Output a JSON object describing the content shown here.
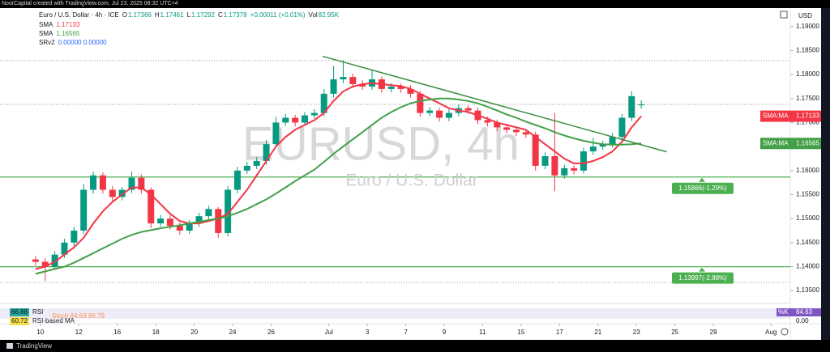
{
  "frame": {
    "credit": "NoorCapital created with TradingView.com, Jul 23, 2025 08:32 UTC+4",
    "logo": "TradingView",
    "currency": "USD"
  },
  "chart_data": {
    "type": "candlestick",
    "watermark": "EURUSD, 4h",
    "watermark_sub": "Euro / U.S. Dollar",
    "symbol": "Euro / U.S. Dollar · 4h · ICE",
    "ohlc_labels": [
      "O",
      "H",
      "L",
      "C"
    ],
    "ohlc_values": [
      "1.17366",
      "1.17461",
      "1.17292",
      "1.17378"
    ],
    "change": "+0.00011 (+0.01%)",
    "vol_label": "Vol",
    "vol": "82.95K",
    "indicators": [
      {
        "name": "SMA",
        "value": "1.17133",
        "color": "#f23645"
      },
      {
        "name": "SMA",
        "value": "1.16565",
        "color": "#43a047"
      },
      {
        "name": "SRv2",
        "value": "0.00000  0.00000",
        "color": "#2962ff"
      }
    ],
    "up_color": "#089981",
    "down_color": "#f23645",
    "xlim": [
      -2.1,
      39.0
    ],
    "ylim": [
      1.193,
      1.133
    ],
    "grid": false,
    "xticks": [
      {
        "value": 0,
        "label": "10"
      },
      {
        "value": 2,
        "label": "12"
      },
      {
        "value": 4,
        "label": "16"
      },
      {
        "value": 6,
        "label": "18"
      },
      {
        "value": 8,
        "label": "20"
      },
      {
        "value": 10,
        "label": "24"
      },
      {
        "value": 12,
        "label": "26"
      },
      {
        "value": 15,
        "label": "Jul"
      },
      {
        "value": 17,
        "label": "3"
      },
      {
        "value": 19,
        "label": "7"
      },
      {
        "value": 21,
        "label": "9"
      },
      {
        "value": 23,
        "label": "11"
      },
      {
        "value": 25,
        "label": "15"
      },
      {
        "value": 27,
        "label": "17"
      },
      {
        "value": 29,
        "label": "21"
      },
      {
        "value": 31,
        "label": "23"
      },
      {
        "value": 33,
        "label": "25"
      },
      {
        "value": 35,
        "label": "29"
      },
      {
        "value": 38,
        "label": "Aug"
      }
    ],
    "yticks": [
      {
        "value": 1.19,
        "label": "1.19000"
      },
      {
        "value": 1.185,
        "label": "1.18500"
      },
      {
        "value": 1.18,
        "label": "1.18000"
      },
      {
        "value": 1.175,
        "label": "1.17500"
      },
      {
        "value": 1.17,
        "label": "1.17000"
      },
      {
        "value": 1.165,
        "label": "1.16500"
      },
      {
        "value": 1.16,
        "label": "1.16000"
      },
      {
        "value": 1.155,
        "label": "1.15500"
      },
      {
        "value": 1.15,
        "label": "1.15000"
      },
      {
        "value": 1.145,
        "label": "1.14500"
      },
      {
        "value": 1.14,
        "label": "1.14000"
      },
      {
        "value": 1.135,
        "label": "1.13500"
      }
    ],
    "x": [
      -0.25,
      0.25,
      0.75,
      1.25,
      1.75,
      2.25,
      2.75,
      3.25,
      3.75,
      4.25,
      4.75,
      5.25,
      5.75,
      6.25,
      6.75,
      7.25,
      7.75,
      8.25,
      8.75,
      9.25,
      9.75,
      10.25,
      10.75,
      11.25,
      11.75,
      12.25,
      12.75,
      13.25,
      13.75,
      14.25,
      14.75,
      15.25,
      15.75,
      16.25,
      16.75,
      17.25,
      17.75,
      18.25,
      18.75,
      19.25,
      19.75,
      20.25,
      20.75,
      21.25,
      21.75,
      22.25,
      22.75,
      23.25,
      23.75,
      24.25,
      24.75,
      25.25,
      25.75,
      26.25,
      26.75,
      27.25,
      27.75,
      28.25,
      28.75,
      29.25,
      29.75,
      30.25,
      30.75,
      31.25
    ],
    "open": [
      1.1415,
      1.141,
      1.14,
      1.1425,
      1.145,
      1.1475,
      1.156,
      1.159,
      1.156,
      1.1545,
      1.156,
      1.1585,
      1.156,
      1.149,
      1.15,
      1.1485,
      1.1475,
      1.149,
      1.1505,
      1.152,
      1.147,
      1.156,
      1.16,
      1.161,
      1.162,
      1.1655,
      1.17,
      1.171,
      1.17,
      1.1715,
      1.172,
      1.176,
      1.179,
      1.1795,
      1.178,
      1.1775,
      1.179,
      1.177,
      1.1775,
      1.177,
      1.176,
      1.172,
      1.1725,
      1.171,
      1.172,
      1.173,
      1.1725,
      1.1705,
      1.17,
      1.169,
      1.1685,
      1.168,
      1.1675,
      1.161,
      1.163,
      1.159,
      1.1605,
      1.16,
      1.164,
      1.165,
      1.1655,
      1.167,
      1.171,
      1.17366
    ],
    "high": [
      1.1422,
      1.1418,
      1.1432,
      1.1458,
      1.1483,
      1.1572,
      1.1598,
      1.1596,
      1.1568,
      1.1566,
      1.1598,
      1.1592,
      1.1565,
      1.1508,
      1.1507,
      1.1492,
      1.1497,
      1.1512,
      1.1527,
      1.1524,
      1.1568,
      1.1608,
      1.1618,
      1.1628,
      1.1664,
      1.1712,
      1.1718,
      1.1716,
      1.1722,
      1.1728,
      1.177,
      1.1818,
      1.183,
      1.1802,
      1.1788,
      1.1808,
      1.1796,
      1.1782,
      1.1781,
      1.1778,
      1.1766,
      1.1732,
      1.1731,
      1.1728,
      1.1738,
      1.1736,
      1.1731,
      1.1712,
      1.1706,
      1.1697,
      1.1691,
      1.1686,
      1.1681,
      1.1638,
      1.172,
      1.1612,
      1.1611,
      1.1648,
      1.1668,
      1.1662,
      1.1678,
      1.1718,
      1.1765,
      1.17461
    ],
    "low": [
      1.1402,
      1.137,
      1.1393,
      1.1418,
      1.1443,
      1.1468,
      1.1552,
      1.1552,
      1.1537,
      1.1538,
      1.1553,
      1.1552,
      1.148,
      1.1483,
      1.1477,
      1.1466,
      1.1468,
      1.1483,
      1.1498,
      1.146,
      1.1463,
      1.1553,
      1.1593,
      1.1603,
      1.1612,
      1.1648,
      1.1693,
      1.1692,
      1.1694,
      1.1708,
      1.1713,
      1.1752,
      1.1782,
      1.1772,
      1.1768,
      1.1768,
      1.1762,
      1.1763,
      1.1762,
      1.1752,
      1.1712,
      1.1713,
      1.1702,
      1.1703,
      1.1713,
      1.1718,
      1.1697,
      1.1692,
      1.1682,
      1.1678,
      1.1672,
      1.1668,
      1.16,
      1.1603,
      1.1557,
      1.1583,
      1.1592,
      1.1594,
      1.1633,
      1.1643,
      1.1648,
      1.1663,
      1.1703,
      1.17292
    ],
    "close": [
      1.141,
      1.14,
      1.1425,
      1.145,
      1.1475,
      1.156,
      1.159,
      1.156,
      1.1545,
      1.156,
      1.1585,
      1.156,
      1.149,
      1.15,
      1.1485,
      1.1475,
      1.149,
      1.1505,
      1.152,
      1.147,
      1.156,
      1.16,
      1.161,
      1.162,
      1.1655,
      1.17,
      1.171,
      1.17,
      1.1715,
      1.172,
      1.176,
      1.179,
      1.1795,
      1.178,
      1.1775,
      1.179,
      1.177,
      1.1775,
      1.177,
      1.176,
      1.172,
      1.1725,
      1.171,
      1.172,
      1.173,
      1.1725,
      1.1705,
      1.17,
      1.169,
      1.1685,
      1.168,
      1.1675,
      1.161,
      1.163,
      1.159,
      1.1605,
      1.16,
      1.164,
      1.165,
      1.1655,
      1.167,
      1.171,
      1.1755,
      1.17378
    ],
    "sma_lines": [
      {
        "color": "#f23645",
        "values": [
          1.1395,
          1.14,
          1.141,
          1.1425,
          1.144,
          1.146,
          1.149,
          1.1515,
          1.1535,
          1.155,
          1.1565,
          1.1565,
          1.155,
          1.153,
          1.151,
          1.1495,
          1.149,
          1.149,
          1.1495,
          1.15,
          1.151,
          1.1535,
          1.156,
          1.159,
          1.162,
          1.165,
          1.167,
          1.1685,
          1.1695,
          1.1705,
          1.172,
          1.1745,
          1.1765,
          1.1775,
          1.178,
          1.1782,
          1.178,
          1.1778,
          1.1776,
          1.177,
          1.176,
          1.175,
          1.174,
          1.173,
          1.1725,
          1.1722,
          1.1715,
          1.1708,
          1.17,
          1.1695,
          1.169,
          1.1685,
          1.167,
          1.1655,
          1.164,
          1.1625,
          1.1615,
          1.1615,
          1.162,
          1.1628,
          1.164,
          1.166,
          1.169,
          1.17133
        ]
      },
      {
        "color": "#43a047",
        "values": [
          1.1385,
          1.139,
          1.1395,
          1.14,
          1.1408,
          1.1418,
          1.1428,
          1.1438,
          1.1448,
          1.1458,
          1.1466,
          1.1472,
          1.1476,
          1.148,
          1.1483,
          1.1486,
          1.149,
          1.1493,
          1.1497,
          1.15,
          1.1505,
          1.1512,
          1.152,
          1.153,
          1.154,
          1.1552,
          1.1565,
          1.1578,
          1.159,
          1.1602,
          1.1618,
          1.1635,
          1.165,
          1.1665,
          1.168,
          1.1695,
          1.171,
          1.1722,
          1.1732,
          1.174,
          1.1745,
          1.1748,
          1.175,
          1.175,
          1.1748,
          1.1745,
          1.174,
          1.1733,
          1.1725,
          1.1717,
          1.171,
          1.1702,
          1.1695,
          1.1688,
          1.168,
          1.1673,
          1.1667,
          1.1662,
          1.1658,
          1.1655,
          1.1654,
          1.1654,
          1.1655,
          1.16565
        ]
      }
    ],
    "price_labels": [
      {
        "label": "SMA:MA",
        "value": "1.17133",
        "color": "#f23645"
      },
      {
        "label": "SMA:MA",
        "value": "1.16565",
        "color": "#43a047"
      }
    ],
    "trendline": {
      "color": "#388e3c",
      "x": [
        14.68,
        32.57
      ],
      "y": [
        1.1838,
        1.1639
      ]
    },
    "level_color": "#4caf50",
    "levels": [
      {
        "value": 1.15866,
        "label": "1.15866(-1.29%)"
      },
      {
        "value": 1.13997,
        "label": "1.13997(-2.88%)"
      }
    ],
    "dotted_levels": [
      1.1829,
      1.17378,
      1.1367
    ],
    "rsi_pane": {
      "labels": [
        {
          "value": "66.88",
          "name": "RSI",
          "color": "#26a69a"
        },
        {
          "value": "60.72",
          "name": "RSI-based MA",
          "color": "#f9e04b"
        }
      ],
      "stoch": "Stoch 84.63  86.79",
      "k_label": "%K",
      "k_value": "84.63",
      "axis_label": "0.00"
    }
  }
}
